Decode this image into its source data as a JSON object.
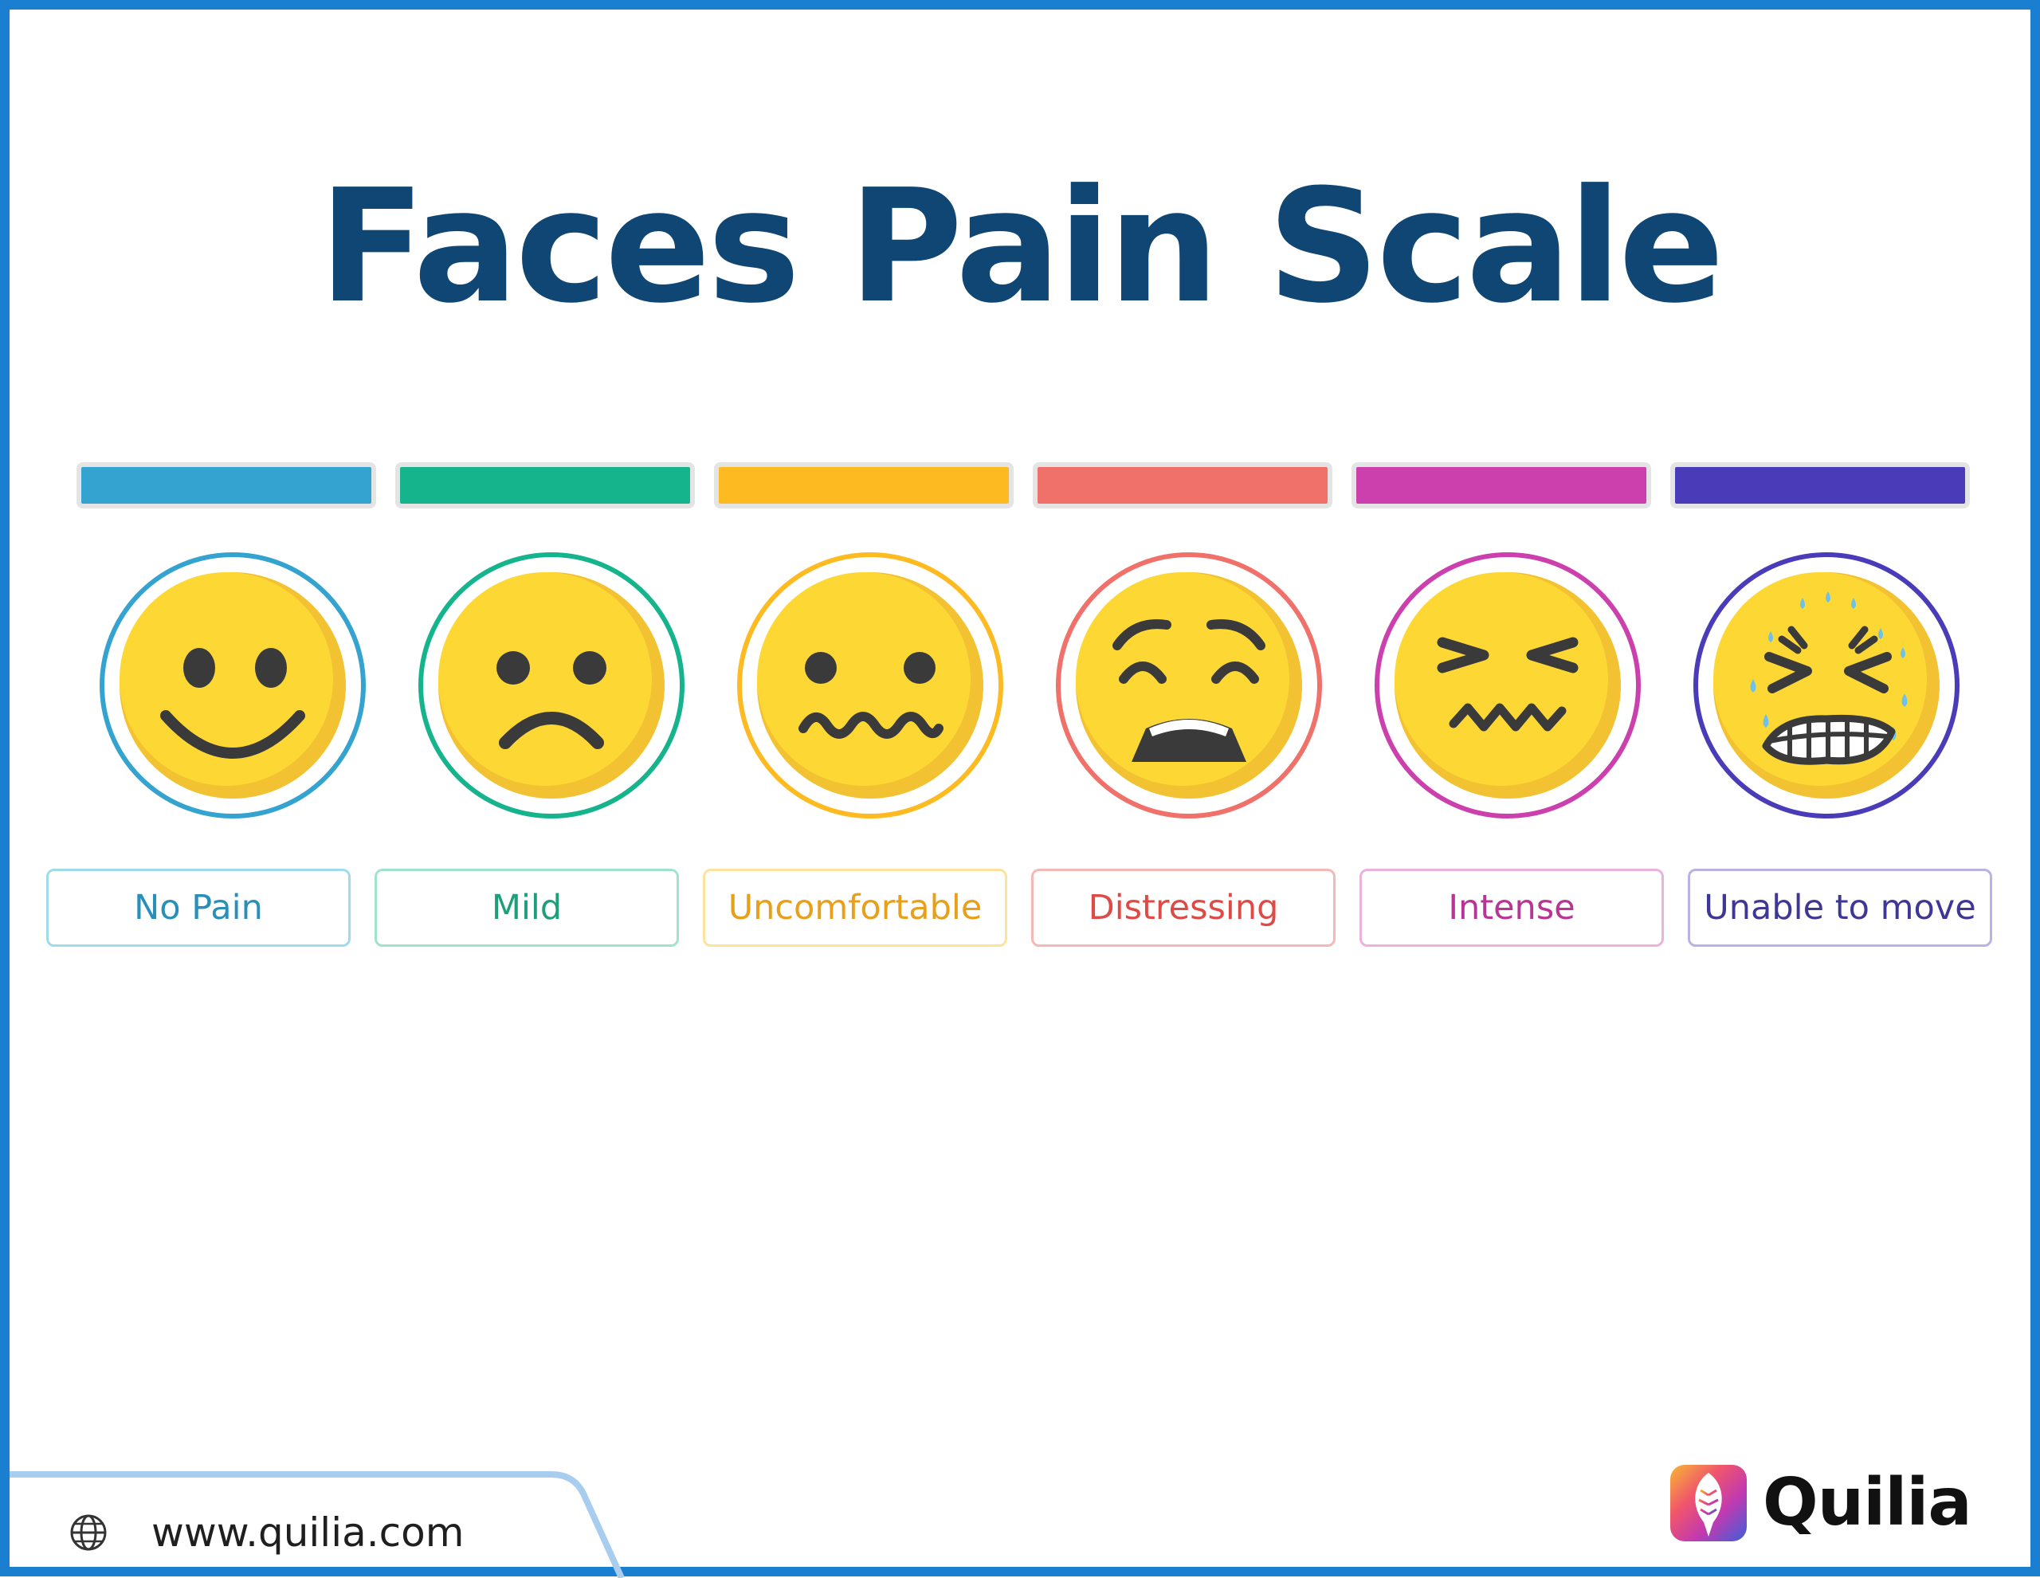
{
  "title": "Faces Pain Scale",
  "levels": [
    {
      "label": "No Pain",
      "color": "#34a3cf",
      "text_color": "#2a8fb8",
      "face_icon": "smiling-face-icon"
    },
    {
      "label": "Mild",
      "color": "#16b48c",
      "text_color": "#1f9e7b",
      "face_icon": "frowning-face-icon"
    },
    {
      "label": "Uncomfortable",
      "color": "#fdbb21",
      "text_color": "#e8a01b",
      "face_icon": "wavy-mouth-face-icon"
    },
    {
      "label": "Distressing",
      "color": "#f0706a",
      "text_color": "#de4b47",
      "face_icon": "anguished-face-icon"
    },
    {
      "label": "Intense",
      "color": "#cc40ae",
      "text_color": "#b83596",
      "face_icon": "squinting-face-icon"
    },
    {
      "label": "Unable to move",
      "color": "#4a3cb8",
      "text_color": "#3f3795",
      "face_icon": "grimacing-sweat-face-icon"
    }
  ],
  "footer": {
    "website": "www.quilia.com",
    "icon": "globe-icon"
  },
  "brand": {
    "name": "Quilia",
    "icon": "quilia-logo-icon"
  }
}
